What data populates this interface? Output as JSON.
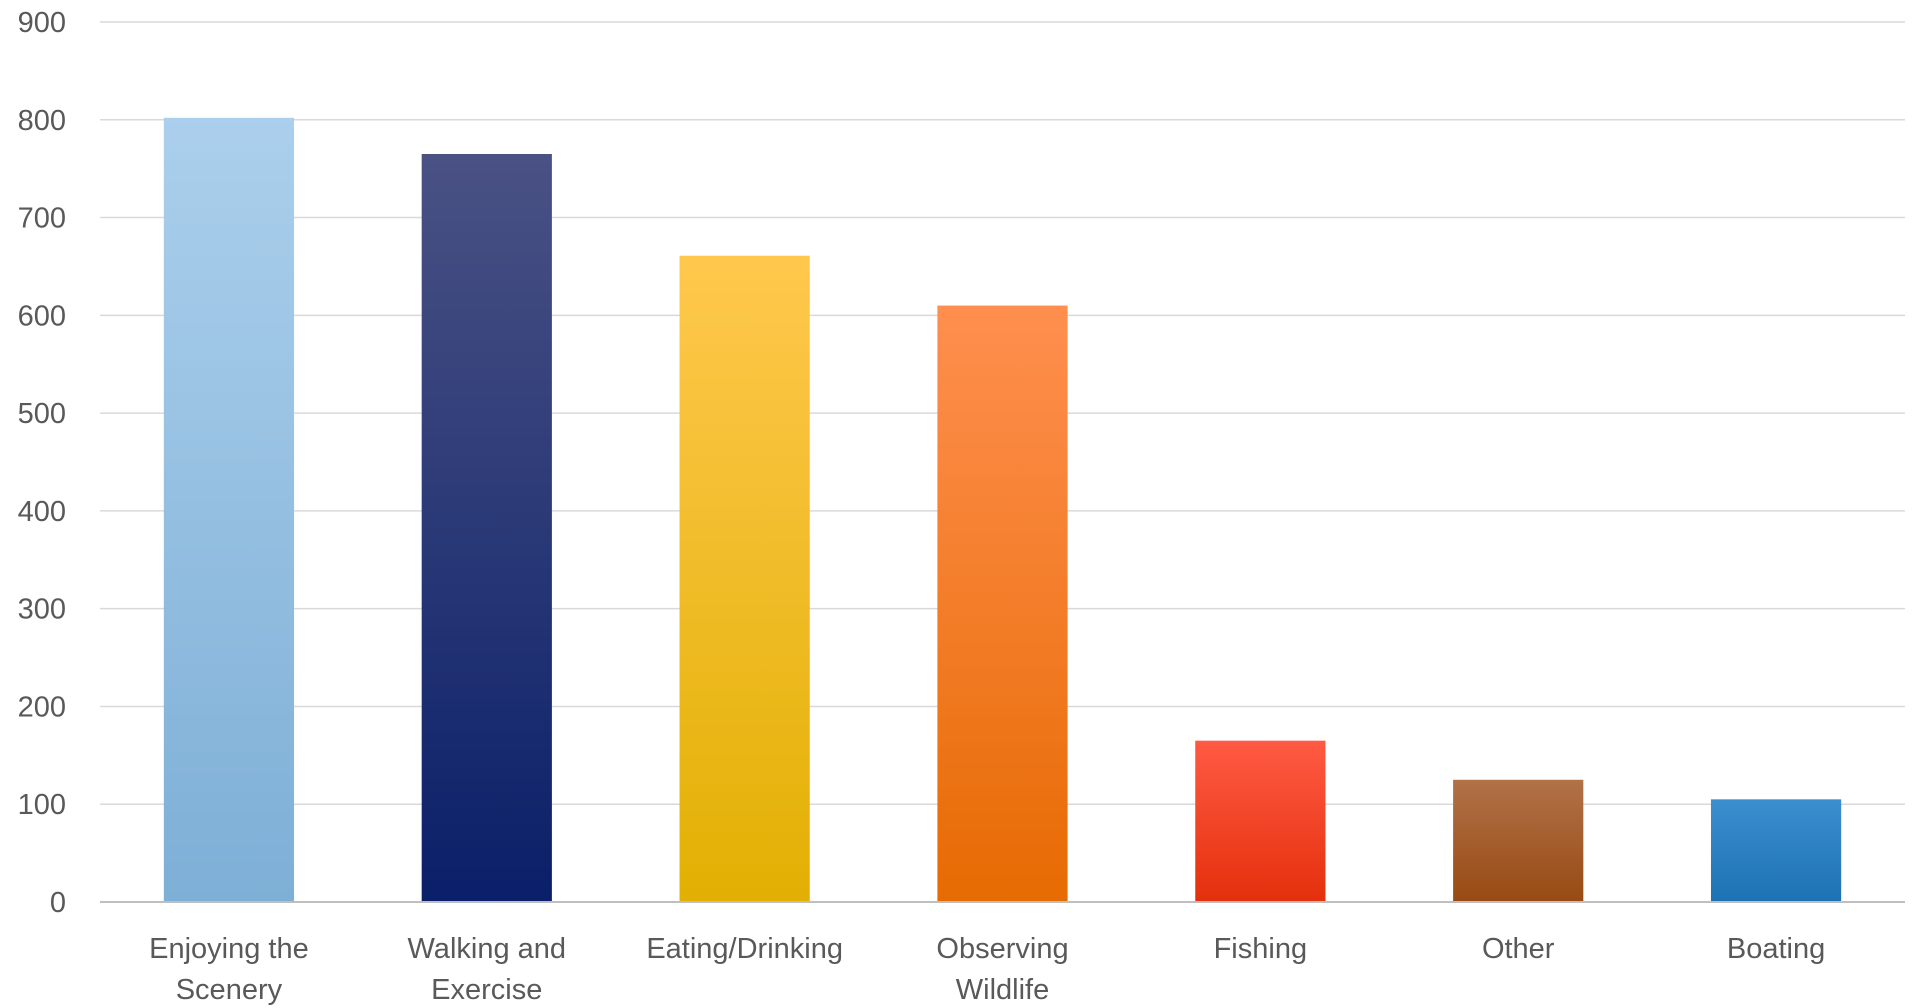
{
  "chart_data": {
    "type": "bar",
    "title": "",
    "xlabel": "",
    "ylabel": "",
    "ylim": [
      0,
      900
    ],
    "yticks": [
      "0",
      "100",
      "200",
      "300",
      "400",
      "500",
      "600",
      "700",
      "800",
      "900"
    ],
    "grid": true,
    "legend": "none",
    "categories": [
      [
        "Enjoying the",
        "Scenery"
      ],
      [
        "Walking and",
        "Exercise"
      ],
      [
        "Eating/Drinking"
      ],
      [
        "Observing",
        "Wildlife"
      ],
      [
        "Fishing"
      ],
      [
        "Other"
      ],
      [
        "Boating"
      ]
    ],
    "values": [
      802,
      765,
      661,
      610,
      165,
      125,
      105
    ],
    "colors": [
      [
        "#abcfec",
        "#7eafd6"
      ],
      [
        "#4a5284",
        "#0a1f69"
      ],
      [
        "#ffc84d",
        "#e2b003"
      ],
      [
        "#ff8f4f",
        "#e76b03"
      ],
      [
        "#ff5a44",
        "#e4300c"
      ],
      [
        "#b17248",
        "#984a13"
      ],
      [
        "#3b8fce",
        "#1d72b5"
      ]
    ]
  }
}
